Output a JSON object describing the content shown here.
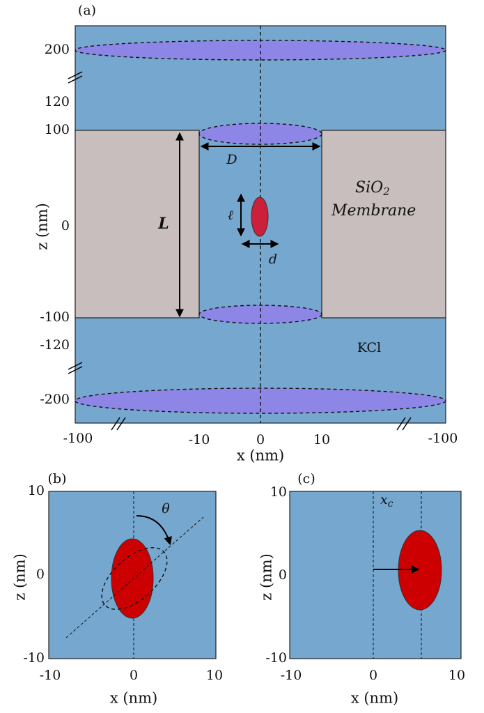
{
  "panels": [
    {
      "label": "(a)",
      "x_axis_label": "x (nm)",
      "z_axis_label": "z (nm)",
      "x_ticks": [
        "-100",
        "-10",
        "0",
        "10",
        "-100"
      ],
      "z_ticks": [
        "200",
        "120",
        "100",
        "0",
        "-100",
        "-120",
        "-200"
      ],
      "annotations": {
        "pore_diameter": "D",
        "pore_length": "L",
        "particle_length": "ℓ",
        "particle_width": "d",
        "material": {
          "text": "SiO",
          "subscript": "2"
        },
        "membrane": "Membrane",
        "electrolyte": "KCl"
      }
    },
    {
      "label": "(b)",
      "x_axis_label": "x (nm)",
      "z_axis_label": "z (nm)",
      "x_ticks": [
        "-10",
        "0",
        "10"
      ],
      "z_ticks": [
        "10",
        "0",
        "-10"
      ],
      "annotations": {
        "angle": "θ"
      }
    },
    {
      "label": "(c)",
      "x_axis_label": "x (nm)",
      "z_axis_label": "z (nm)",
      "x_ticks": [
        "-10",
        "0",
        "10"
      ],
      "z_ticks": [
        "10",
        "0",
        "-10"
      ],
      "annotations": {
        "offset": {
          "symbol": "x",
          "subscript": "c"
        }
      }
    }
  ]
}
